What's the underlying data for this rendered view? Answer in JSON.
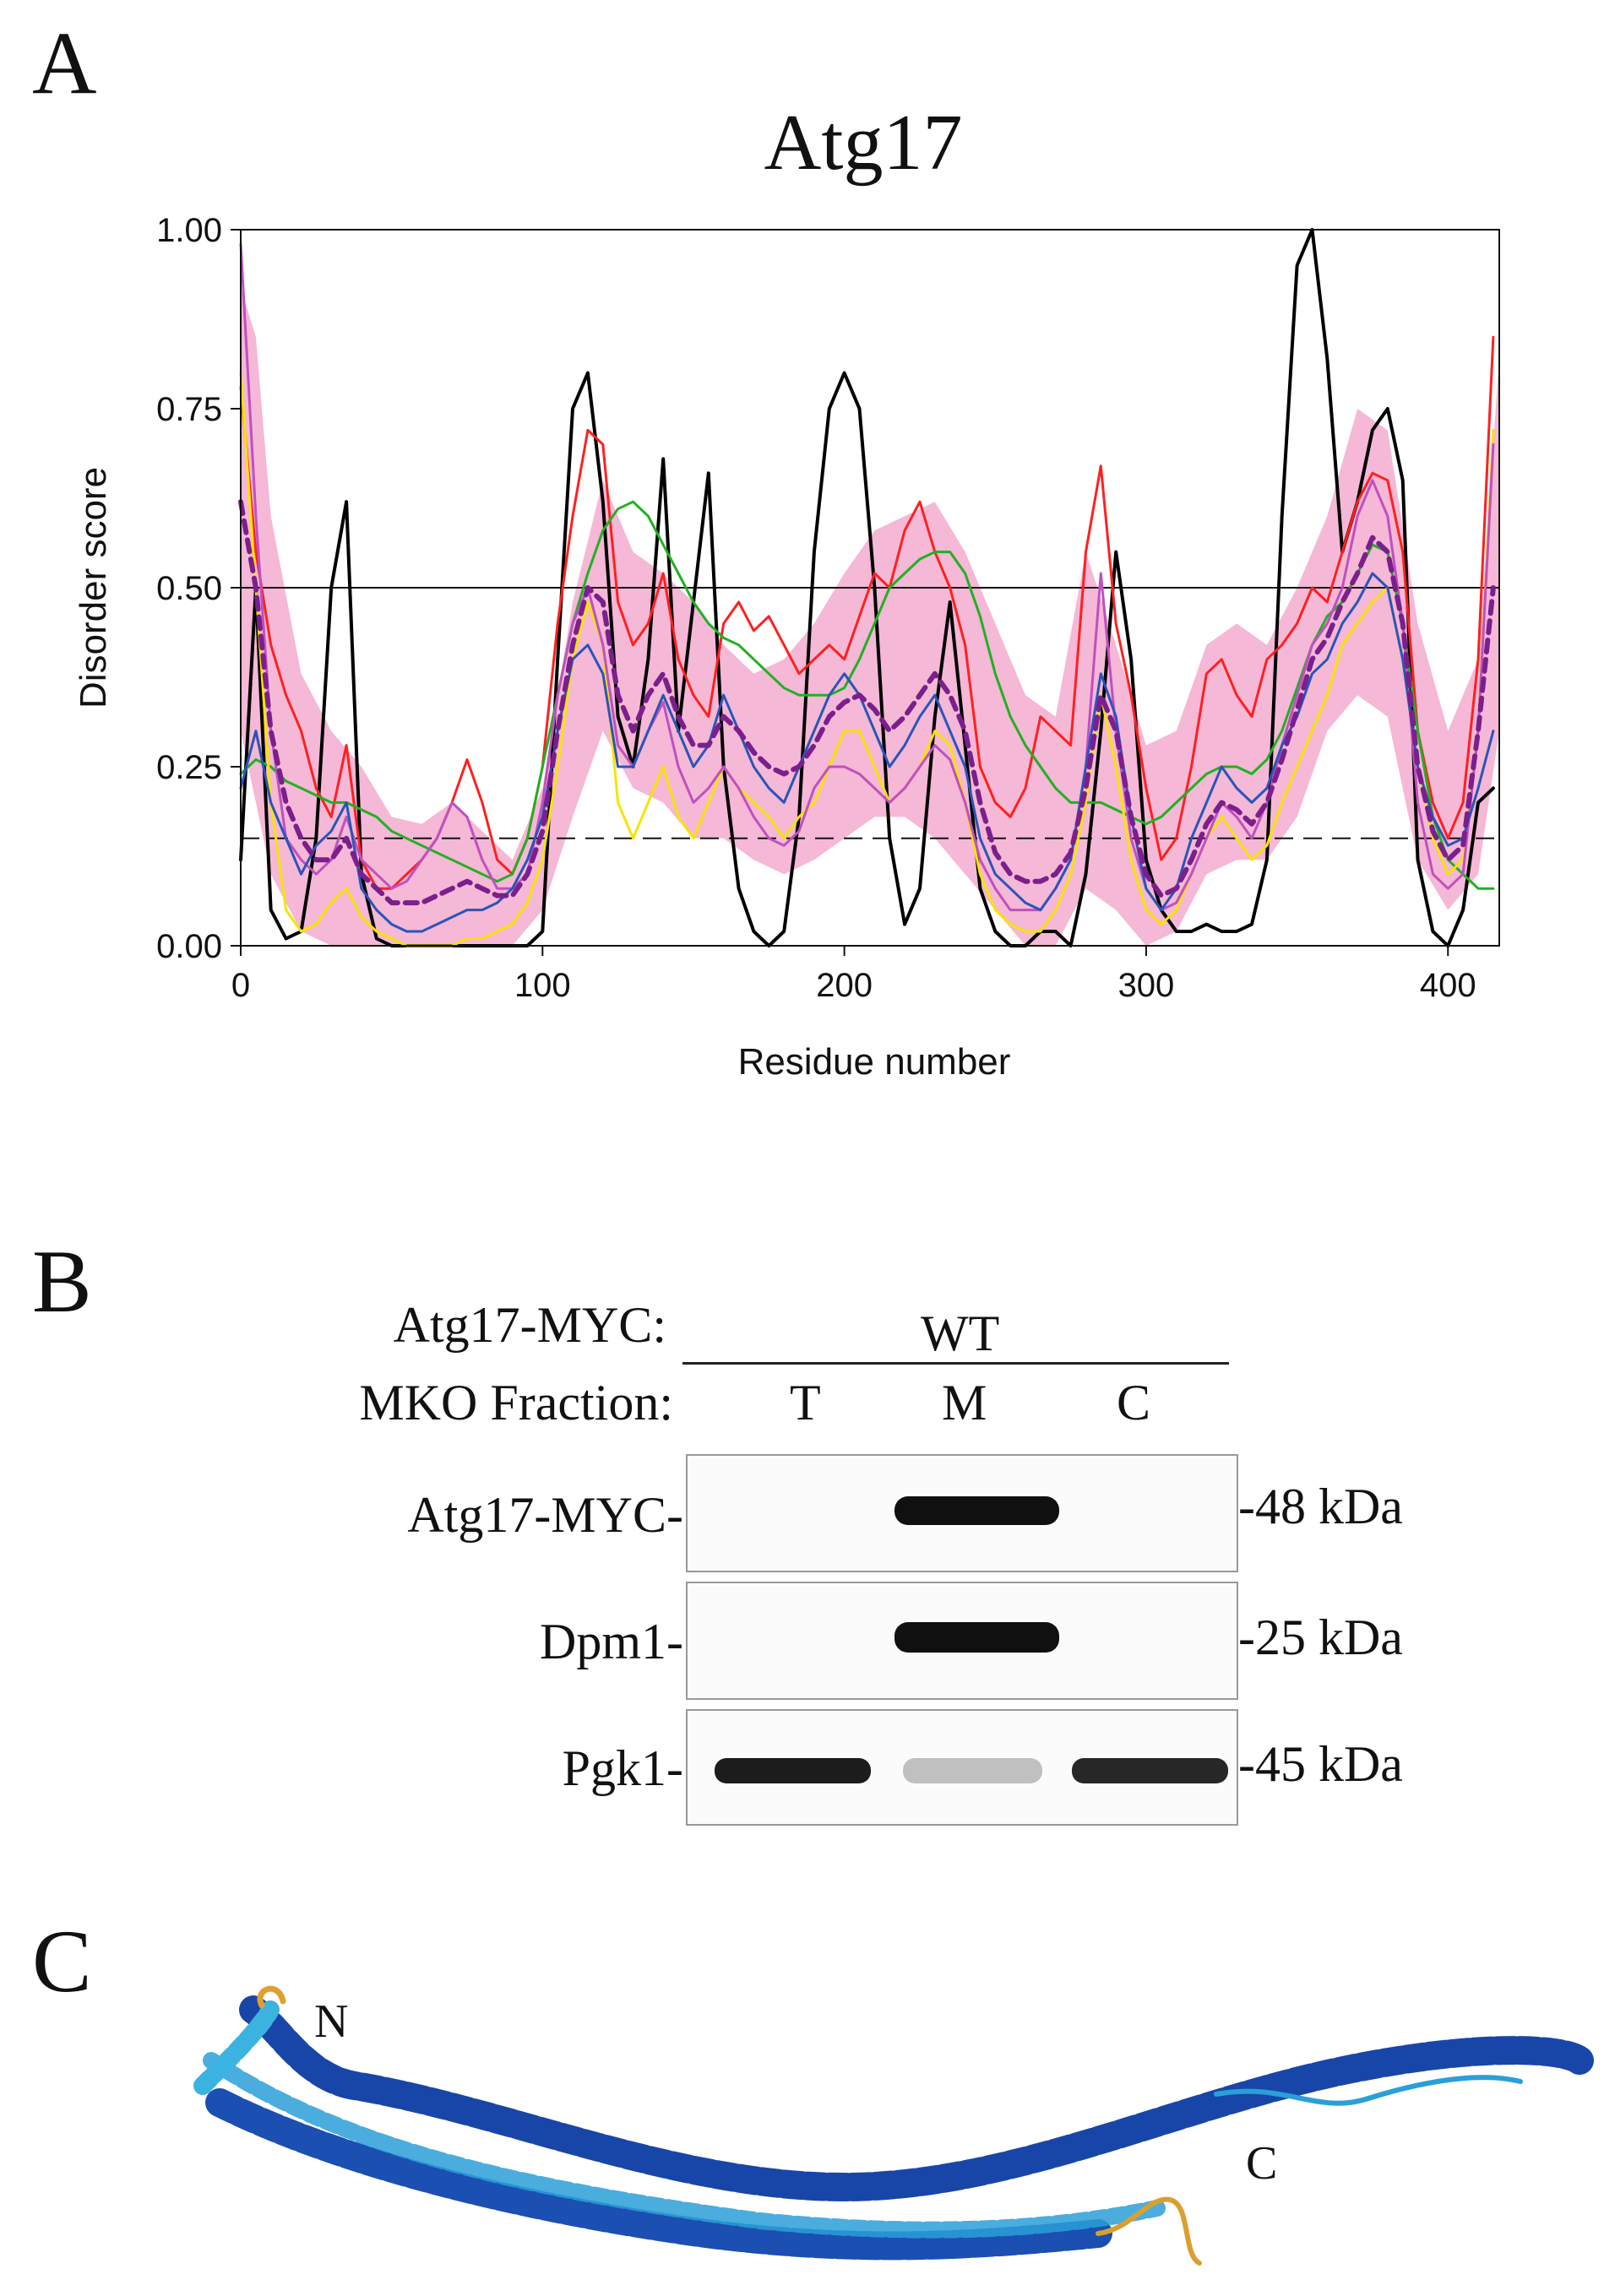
{
  "panels": {
    "a": "A",
    "b": "B",
    "c": "C"
  },
  "chart_data": {
    "type": "line",
    "title": "Atg17",
    "xlabel": "Residue number",
    "ylabel": "Disorder score",
    "xlim": [
      0,
      417
    ],
    "ylim": [
      0,
      1
    ],
    "xticks": [
      "0",
      "100",
      "200",
      "300",
      "400"
    ],
    "yticks": [
      "0.00",
      "0.25",
      "0.50",
      "0.75",
      "1.00"
    ],
    "grid": false,
    "reference_lines": [
      {
        "y": 0.5,
        "style": "solid"
      },
      {
        "y": 0.15,
        "style": "dashed"
      }
    ],
    "band": {
      "color": "#f5b8d6",
      "x": [
        0,
        5,
        10,
        20,
        30,
        40,
        50,
        60,
        70,
        80,
        90,
        100,
        110,
        120,
        130,
        140,
        150,
        160,
        170,
        180,
        190,
        200,
        210,
        220,
        230,
        240,
        250,
        260,
        270,
        280,
        290,
        300,
        310,
        320,
        330,
        340,
        350,
        360,
        370,
        380,
        390,
        400,
        410,
        417
      ],
      "upper": [
        0.92,
        0.85,
        0.6,
        0.38,
        0.3,
        0.25,
        0.18,
        0.17,
        0.2,
        0.16,
        0.12,
        0.22,
        0.48,
        0.65,
        0.55,
        0.52,
        0.48,
        0.42,
        0.38,
        0.4,
        0.45,
        0.52,
        0.58,
        0.6,
        0.62,
        0.55,
        0.45,
        0.35,
        0.32,
        0.55,
        0.42,
        0.28,
        0.3,
        0.42,
        0.45,
        0.42,
        0.5,
        0.6,
        0.75,
        0.72,
        0.45,
        0.3,
        0.4,
        0.82
      ],
      "lower": [
        0.3,
        0.2,
        0.1,
        0.02,
        0.0,
        0.0,
        0.0,
        0.0,
        0.0,
        0.0,
        0.0,
        0.05,
        0.18,
        0.3,
        0.22,
        0.2,
        0.15,
        0.15,
        0.12,
        0.1,
        0.12,
        0.15,
        0.18,
        0.18,
        0.15,
        0.1,
        0.05,
        0.0,
        0.0,
        0.08,
        0.05,
        0.0,
        0.02,
        0.1,
        0.12,
        0.12,
        0.18,
        0.3,
        0.35,
        0.32,
        0.12,
        0.05,
        0.1,
        0.3
      ]
    },
    "x": [
      0,
      5,
      10,
      15,
      20,
      25,
      30,
      35,
      40,
      45,
      50,
      55,
      60,
      65,
      70,
      75,
      80,
      85,
      90,
      95,
      100,
      105,
      110,
      115,
      120,
      125,
      130,
      135,
      140,
      145,
      150,
      155,
      160,
      165,
      170,
      175,
      180,
      185,
      190,
      195,
      200,
      205,
      210,
      215,
      220,
      225,
      230,
      235,
      240,
      245,
      250,
      255,
      260,
      265,
      270,
      275,
      280,
      285,
      290,
      295,
      300,
      305,
      310,
      315,
      320,
      325,
      330,
      335,
      340,
      345,
      350,
      355,
      360,
      365,
      370,
      375,
      380,
      385,
      390,
      395,
      400,
      405,
      410,
      415
    ],
    "series": [
      {
        "color": "#000000",
        "width": 4,
        "dash": "",
        "values": [
          0.12,
          0.5,
          0.05,
          0.01,
          0.02,
          0.15,
          0.5,
          0.62,
          0.1,
          0.01,
          0.0,
          0.0,
          0.0,
          0.0,
          0.0,
          0.0,
          0.0,
          0.0,
          0.0,
          0.0,
          0.02,
          0.4,
          0.75,
          0.8,
          0.62,
          0.32,
          0.25,
          0.4,
          0.68,
          0.3,
          0.48,
          0.66,
          0.25,
          0.08,
          0.02,
          0.0,
          0.02,
          0.18,
          0.55,
          0.75,
          0.8,
          0.75,
          0.5,
          0.15,
          0.03,
          0.08,
          0.32,
          0.48,
          0.28,
          0.08,
          0.02,
          0.0,
          0.0,
          0.02,
          0.02,
          0.0,
          0.1,
          0.3,
          0.55,
          0.4,
          0.12,
          0.05,
          0.02,
          0.02,
          0.03,
          0.02,
          0.02,
          0.03,
          0.12,
          0.6,
          0.95,
          1.0,
          0.82,
          0.55,
          0.62,
          0.72,
          0.75,
          0.65,
          0.12,
          0.02,
          0.0,
          0.05,
          0.2,
          0.22
        ]
      },
      {
        "color": "#ff2020",
        "width": 3,
        "dash": "",
        "values": [
          0.78,
          0.55,
          0.42,
          0.35,
          0.3,
          0.22,
          0.18,
          0.28,
          0.12,
          0.08,
          0.08,
          0.1,
          0.12,
          0.15,
          0.2,
          0.26,
          0.2,
          0.12,
          0.1,
          0.15,
          0.25,
          0.45,
          0.6,
          0.72,
          0.7,
          0.48,
          0.42,
          0.45,
          0.52,
          0.4,
          0.35,
          0.32,
          0.45,
          0.48,
          0.44,
          0.46,
          0.42,
          0.38,
          0.4,
          0.42,
          0.4,
          0.46,
          0.52,
          0.5,
          0.58,
          0.62,
          0.55,
          0.5,
          0.42,
          0.25,
          0.2,
          0.18,
          0.22,
          0.32,
          0.3,
          0.28,
          0.55,
          0.67,
          0.45,
          0.35,
          0.22,
          0.12,
          0.15,
          0.25,
          0.38,
          0.4,
          0.35,
          0.32,
          0.4,
          0.42,
          0.45,
          0.5,
          0.48,
          0.55,
          0.62,
          0.66,
          0.65,
          0.55,
          0.3,
          0.2,
          0.15,
          0.2,
          0.4,
          0.85
        ]
      },
      {
        "color": "#22b022",
        "width": 3,
        "dash": "",
        "values": [
          0.24,
          0.26,
          0.25,
          0.23,
          0.22,
          0.21,
          0.2,
          0.2,
          0.19,
          0.18,
          0.16,
          0.15,
          0.14,
          0.13,
          0.12,
          0.11,
          0.1,
          0.09,
          0.1,
          0.15,
          0.25,
          0.35,
          0.45,
          0.52,
          0.58,
          0.61,
          0.62,
          0.6,
          0.56,
          0.52,
          0.48,
          0.45,
          0.43,
          0.42,
          0.4,
          0.38,
          0.36,
          0.35,
          0.35,
          0.35,
          0.36,
          0.4,
          0.45,
          0.5,
          0.52,
          0.54,
          0.55,
          0.55,
          0.52,
          0.46,
          0.38,
          0.32,
          0.28,
          0.25,
          0.22,
          0.2,
          0.2,
          0.2,
          0.19,
          0.18,
          0.17,
          0.18,
          0.2,
          0.22,
          0.24,
          0.25,
          0.25,
          0.24,
          0.26,
          0.3,
          0.36,
          0.42,
          0.46,
          0.48,
          0.52,
          0.56,
          0.55,
          0.45,
          0.3,
          0.18,
          0.12,
          0.1,
          0.08,
          0.08
        ]
      },
      {
        "color": "#f7e400",
        "width": 3,
        "dash": "",
        "values": [
          0.8,
          0.5,
          0.2,
          0.05,
          0.02,
          0.03,
          0.06,
          0.08,
          0.04,
          0.02,
          0.01,
          0.0,
          0.0,
          0.0,
          0.0,
          0.01,
          0.01,
          0.02,
          0.03,
          0.06,
          0.12,
          0.25,
          0.4,
          0.48,
          0.42,
          0.2,
          0.15,
          0.2,
          0.25,
          0.18,
          0.15,
          0.2,
          0.25,
          0.22,
          0.2,
          0.18,
          0.15,
          0.18,
          0.2,
          0.25,
          0.3,
          0.3,
          0.25,
          0.2,
          0.22,
          0.25,
          0.3,
          0.28,
          0.2,
          0.1,
          0.05,
          0.03,
          0.02,
          0.02,
          0.05,
          0.1,
          0.2,
          0.35,
          0.25,
          0.12,
          0.05,
          0.03,
          0.05,
          0.1,
          0.15,
          0.18,
          0.15,
          0.12,
          0.14,
          0.2,
          0.25,
          0.3,
          0.35,
          0.42,
          0.45,
          0.48,
          0.5,
          0.4,
          0.25,
          0.15,
          0.1,
          0.12,
          0.3,
          0.72
        ]
      },
      {
        "color": "#c050c0",
        "width": 3,
        "dash": "",
        "values": [
          0.98,
          0.6,
          0.3,
          0.15,
          0.12,
          0.1,
          0.12,
          0.18,
          0.12,
          0.1,
          0.08,
          0.09,
          0.12,
          0.15,
          0.2,
          0.18,
          0.12,
          0.08,
          0.08,
          0.1,
          0.2,
          0.35,
          0.45,
          0.5,
          0.42,
          0.28,
          0.25,
          0.3,
          0.34,
          0.25,
          0.2,
          0.22,
          0.25,
          0.22,
          0.18,
          0.15,
          0.14,
          0.16,
          0.22,
          0.25,
          0.25,
          0.24,
          0.22,
          0.2,
          0.22,
          0.25,
          0.28,
          0.26,
          0.2,
          0.12,
          0.08,
          0.05,
          0.05,
          0.05,
          0.08,
          0.12,
          0.25,
          0.52,
          0.3,
          0.15,
          0.08,
          0.05,
          0.06,
          0.1,
          0.15,
          0.2,
          0.18,
          0.15,
          0.2,
          0.28,
          0.35,
          0.42,
          0.45,
          0.5,
          0.6,
          0.65,
          0.6,
          0.45,
          0.2,
          0.1,
          0.08,
          0.1,
          0.3,
          0.7
        ]
      },
      {
        "color": "#2a55b8",
        "width": 3,
        "dash": "",
        "values": [
          0.22,
          0.3,
          0.2,
          0.15,
          0.1,
          0.14,
          0.16,
          0.2,
          0.08,
          0.05,
          0.03,
          0.02,
          0.02,
          0.03,
          0.04,
          0.05,
          0.05,
          0.06,
          0.08,
          0.12,
          0.18,
          0.3,
          0.4,
          0.42,
          0.38,
          0.25,
          0.25,
          0.3,
          0.35,
          0.3,
          0.25,
          0.28,
          0.35,
          0.3,
          0.25,
          0.22,
          0.2,
          0.25,
          0.3,
          0.35,
          0.38,
          0.35,
          0.3,
          0.25,
          0.28,
          0.32,
          0.35,
          0.3,
          0.25,
          0.15,
          0.1,
          0.08,
          0.06,
          0.05,
          0.08,
          0.12,
          0.25,
          0.38,
          0.32,
          0.18,
          0.08,
          0.05,
          0.08,
          0.15,
          0.2,
          0.25,
          0.22,
          0.2,
          0.22,
          0.28,
          0.32,
          0.38,
          0.4,
          0.45,
          0.48,
          0.52,
          0.5,
          0.4,
          0.25,
          0.18,
          0.14,
          0.15,
          0.22,
          0.3
        ]
      },
      {
        "color": "#7a1f8c",
        "width": 6,
        "dash": "14 9",
        "values": [
          0.62,
          0.5,
          0.3,
          0.2,
          0.15,
          0.12,
          0.12,
          0.15,
          0.1,
          0.08,
          0.06,
          0.06,
          0.06,
          0.07,
          0.08,
          0.09,
          0.08,
          0.07,
          0.07,
          0.1,
          0.16,
          0.3,
          0.42,
          0.5,
          0.48,
          0.35,
          0.3,
          0.35,
          0.38,
          0.32,
          0.28,
          0.28,
          0.32,
          0.3,
          0.27,
          0.25,
          0.24,
          0.25,
          0.28,
          0.32,
          0.34,
          0.35,
          0.33,
          0.3,
          0.32,
          0.35,
          0.38,
          0.35,
          0.3,
          0.2,
          0.13,
          0.1,
          0.09,
          0.09,
          0.1,
          0.13,
          0.22,
          0.35,
          0.3,
          0.18,
          0.1,
          0.07,
          0.08,
          0.12,
          0.17,
          0.2,
          0.19,
          0.17,
          0.2,
          0.26,
          0.33,
          0.4,
          0.43,
          0.48,
          0.52,
          0.57,
          0.55,
          0.45,
          0.25,
          0.16,
          0.12,
          0.14,
          0.3,
          0.5
        ]
      }
    ]
  },
  "blot": {
    "header_label": "Atg17-MYC:",
    "header_group": "WT",
    "fraction_label": "MKO Fraction:",
    "lanes": [
      "T",
      "M",
      "C"
    ],
    "rows": [
      {
        "label": "Atg17-MYC-",
        "size": "-48 kDa",
        "bands": [
          0.0,
          1.0,
          0.0
        ]
      },
      {
        "label": "Dpm1-",
        "size": "-25 kDa",
        "bands": [
          0.0,
          1.0,
          0.0
        ]
      },
      {
        "label": "Pgk1-",
        "size": "-45 kDa",
        "bands": [
          0.95,
          0.25,
          0.9
        ]
      }
    ]
  },
  "structure": {
    "n_label": "N",
    "c_label": "C"
  }
}
